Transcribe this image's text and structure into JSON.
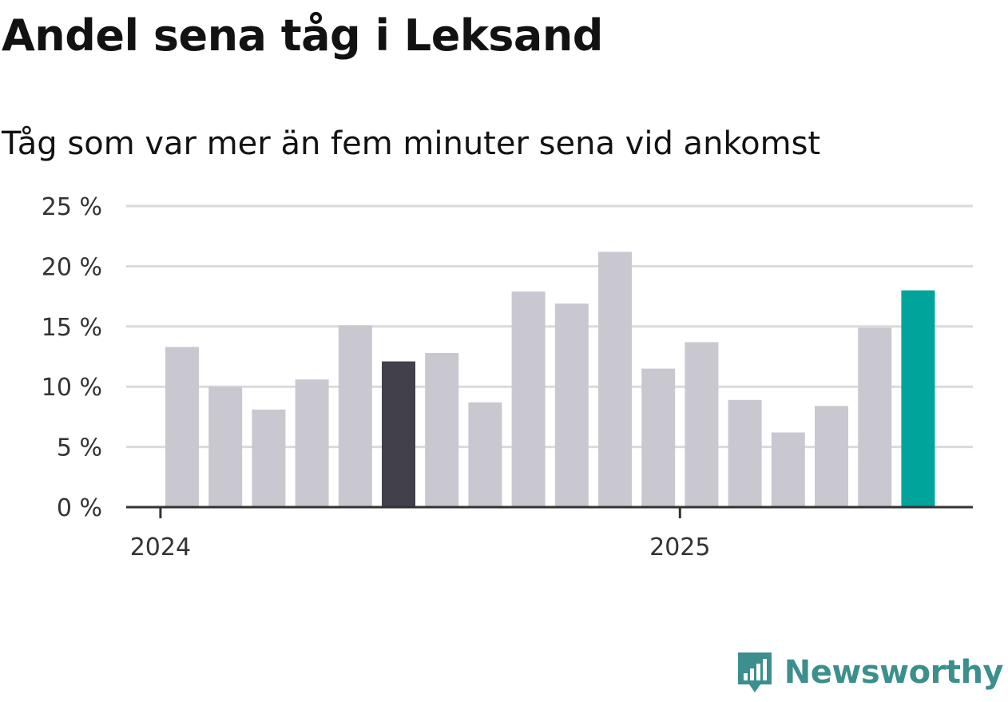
{
  "title": "Andel sena tåg i Leksand",
  "subtitle": "Tåg som var mer än fem minuter sena vid ankomst",
  "brand": {
    "name": "Newsworthy",
    "logo_icon": "newsworthy-chart-icon",
    "color": "#3c8f8c"
  },
  "colors": {
    "default_bar": "#c9c8d1",
    "highlight_bar": "#42404b",
    "current_bar": "#00a49a",
    "grid": "#dadadd",
    "axis": "#333333"
  },
  "chart_data": {
    "type": "bar",
    "categories": [
      "2024-01",
      "2024-02",
      "2024-03",
      "2024-04",
      "2024-05",
      "2024-06",
      "2024-07",
      "2024-08",
      "2024-09",
      "2024-10",
      "2024-11",
      "2024-12",
      "2025-01",
      "2025-02",
      "2025-03",
      "2025-04",
      "2025-05",
      "2025-06"
    ],
    "values": [
      13.3,
      10.0,
      8.1,
      10.6,
      15.1,
      12.1,
      12.8,
      8.7,
      17.9,
      16.9,
      21.2,
      11.5,
      13.7,
      8.9,
      6.2,
      8.4,
      14.9,
      18.0
    ],
    "bar_roles": [
      "default",
      "default",
      "default",
      "default",
      "default",
      "highlight",
      "default",
      "default",
      "default",
      "default",
      "default",
      "default",
      "default",
      "default",
      "default",
      "default",
      "default",
      "current"
    ],
    "ylim": [
      0,
      25
    ],
    "yticks": [
      0,
      5,
      10,
      15,
      20,
      25
    ],
    "ytick_labels": [
      "0 %",
      "5 %",
      "10 %",
      "15 %",
      "20 %",
      "25 %"
    ],
    "xtick_labels": [
      {
        "at": "2024-01",
        "label": "2024"
      },
      {
        "at": "2025-01",
        "label": "2025"
      }
    ],
    "xlabel": "",
    "ylabel": "",
    "grid": true,
    "legend": "none"
  }
}
